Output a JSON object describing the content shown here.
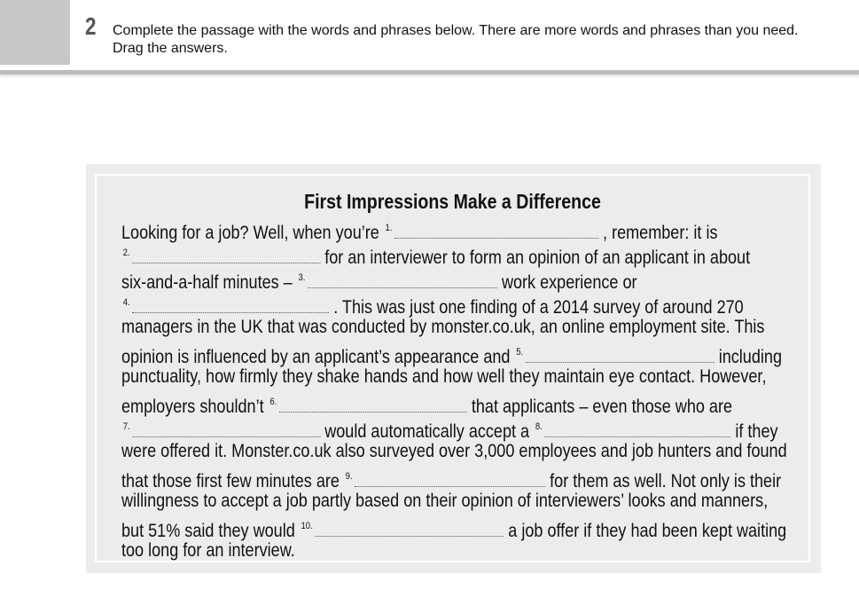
{
  "exercise": {
    "number": "2",
    "instructions": "Complete the passage with the words and phrases below. There are more words and phrases than you need. Drag the answers."
  },
  "passage": {
    "title": "First Impressions Make a Difference",
    "lines": [
      [
        {
          "t": "Looking for a job? Well, when you’re "
        },
        {
          "b": "1."
        },
        {
          "t": " , remember: it is"
        }
      ],
      [
        {
          "b": "2."
        },
        {
          "t": " for an interviewer to form an opinion of an applicant in about"
        }
      ],
      [
        {
          "t": "six-and-a-half minutes – "
        },
        {
          "b": "3."
        },
        {
          "t": " work experience or"
        }
      ],
      [
        {
          "b": "4."
        },
        {
          "t": " . This was just one finding of a 2014 survey of around 270"
        }
      ],
      [
        {
          "t": "managers in the UK that was conducted by monster.co.uk, an online employment site. This"
        }
      ],
      [
        {
          "t": "opinion is influenced by an applicant’s appearance and "
        },
        {
          "b": "5."
        },
        {
          "t": " including"
        }
      ],
      [
        {
          "t": "punctuality, how firmly they shake hands and how well they maintain eye contact. However,"
        }
      ],
      [
        {
          "t": "employers shouldn’t "
        },
        {
          "b": "6."
        },
        {
          "t": " that applicants – even those who are"
        }
      ],
      [
        {
          "b": "7."
        },
        {
          "t": " would automatically accept a "
        },
        {
          "b": "8."
        },
        {
          "t": " if they"
        }
      ],
      [
        {
          "t": "were offered it. Monster.co.uk also surveyed over 3,000 employees and job hunters and found"
        }
      ],
      [
        {
          "t": "that those first few minutes are "
        },
        {
          "b": "9."
        },
        {
          "t": " for them as well. Not only is their"
        }
      ],
      [
        {
          "t": "willingness to accept a job partly based on their opinion of interviewers’ looks and manners,"
        }
      ],
      [
        {
          "t": "but 51% said they would "
        },
        {
          "b": "10."
        },
        {
          "t": " a job offer if they had been kept waiting"
        }
      ],
      [
        {
          "t": "too long for an interview."
        }
      ]
    ]
  }
}
